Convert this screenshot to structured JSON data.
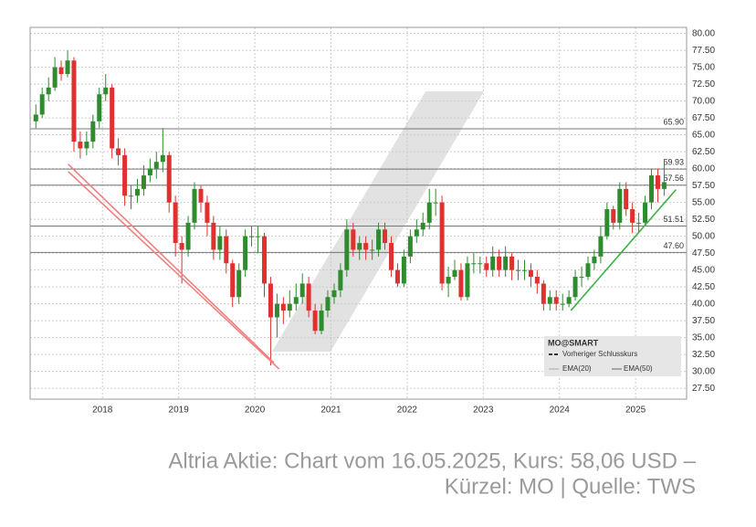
{
  "chart_data": {
    "type": "candlestick",
    "xlim": [
      2017.05,
      2025.67
    ],
    "xticks": [
      2018,
      2019,
      2020,
      2021,
      2022,
      2023,
      2024,
      2025
    ],
    "ylim": [
      25.9,
      80.9
    ],
    "yticks": [
      {
        "value": 27.5,
        "label": "27.50"
      },
      {
        "value": 30,
        "label": "30.00"
      },
      {
        "value": 32.5,
        "label": "32.50"
      },
      {
        "value": 35,
        "label": "35.00"
      },
      {
        "value": 37.5,
        "label": "37.50"
      },
      {
        "value": 40,
        "label": "40.00"
      },
      {
        "value": 42.5,
        "label": "42.50"
      },
      {
        "value": 45,
        "label": "45.00"
      },
      {
        "value": 47.5,
        "label": "47.50"
      },
      {
        "value": 50,
        "label": "50.00"
      },
      {
        "value": 52.5,
        "label": "52.50"
      },
      {
        "value": 55,
        "label": "55.00"
      },
      {
        "value": 57.5,
        "label": "57.50"
      },
      {
        "value": 60,
        "label": "60.00"
      },
      {
        "value": 62.5,
        "label": "62.50"
      },
      {
        "value": 65,
        "label": "65.00"
      },
      {
        "value": 67.5,
        "label": "67.50"
      },
      {
        "value": 70,
        "label": "70.00"
      },
      {
        "value": 72.5,
        "label": "72.50"
      },
      {
        "value": 75,
        "label": "75.00"
      },
      {
        "value": 77.5,
        "label": "77.50"
      },
      {
        "value": 80,
        "label": "80.00"
      }
    ],
    "grid": true,
    "up_color": "#2e8b2e",
    "down_color": "#e03030",
    "x": [
      2017.125,
      2017.208,
      2017.292,
      2017.375,
      2017.458,
      2017.542,
      2017.625,
      2017.708,
      2017.792,
      2017.875,
      2017.958,
      2018.042,
      2018.125,
      2018.208,
      2018.292,
      2018.375,
      2018.458,
      2018.542,
      2018.625,
      2018.708,
      2018.792,
      2018.875,
      2018.958,
      2019.042,
      2019.125,
      2019.208,
      2019.292,
      2019.375,
      2019.458,
      2019.542,
      2019.625,
      2019.708,
      2019.792,
      2019.875,
      2019.958,
      2020.042,
      2020.125,
      2020.208,
      2020.292,
      2020.375,
      2020.458,
      2020.542,
      2020.625,
      2020.708,
      2020.792,
      2020.875,
      2020.958,
      2021.042,
      2021.125,
      2021.208,
      2021.292,
      2021.375,
      2021.458,
      2021.542,
      2021.625,
      2021.708,
      2021.792,
      2021.875,
      2021.958,
      2022.042,
      2022.125,
      2022.208,
      2022.292,
      2022.375,
      2022.458,
      2022.542,
      2022.625,
      2022.708,
      2022.792,
      2022.875,
      2022.958,
      2023.042,
      2023.125,
      2023.208,
      2023.292,
      2023.375,
      2023.458,
      2023.542,
      2023.625,
      2023.708,
      2023.792,
      2023.875,
      2023.958,
      2024.042,
      2024.125,
      2024.208,
      2024.292,
      2024.375,
      2024.458,
      2024.542,
      2024.625,
      2024.708,
      2024.792,
      2024.875,
      2024.958,
      2025.042,
      2025.125,
      2025.208,
      2025.292,
      2025.375
    ],
    "open": [
      67,
      68,
      71,
      72,
      75,
      74,
      76,
      64,
      63,
      64,
      67,
      71,
      72,
      63,
      62,
      56,
      56,
      57,
      59,
      60,
      61,
      62,
      55,
      49,
      48,
      52,
      57,
      55,
      52,
      48,
      50,
      46,
      41,
      45,
      50,
      50,
      50,
      43,
      38,
      40,
      39,
      40,
      41,
      43,
      39,
      36,
      39,
      41,
      42,
      45,
      51,
      48,
      49,
      48,
      48,
      51,
      49,
      45,
      43,
      47,
      50,
      51,
      52,
      55,
      55,
      43,
      44,
      45,
      41,
      46,
      46,
      46,
      45,
      47,
      45,
      47,
      45,
      45,
      45,
      44,
      43,
      40,
      41,
      40,
      40,
      41,
      44,
      44,
      46,
      47,
      50,
      54,
      52,
      57,
      54,
      52,
      52,
      55,
      59,
      57
    ],
    "high": [
      69.5,
      72,
      73.5,
      76.5,
      76,
      77.5,
      76.5,
      65.5,
      65.5,
      68,
      72,
      74,
      72.5,
      64.5,
      63,
      57.5,
      58.5,
      60.5,
      61.5,
      62.5,
      66,
      62.5,
      56,
      50,
      53,
      58,
      57.5,
      56,
      53,
      51.5,
      51,
      46.5,
      46,
      51,
      51.5,
      51.5,
      50.5,
      44,
      41.5,
      41,
      42,
      43,
      44.5,
      44,
      40,
      40,
      42,
      43,
      46,
      52.5,
      52,
      50,
      50,
      49.5,
      52,
      52,
      50,
      46,
      48,
      51,
      52.5,
      53.5,
      57,
      57,
      56,
      45.5,
      46.5,
      46,
      47,
      47.5,
      47,
      47,
      48.5,
      48,
      48.5,
      47.5,
      46.5,
      46.5,
      46,
      45,
      43.5,
      42,
      42,
      41.5,
      42,
      45,
      45.5,
      47,
      48,
      51.5,
      55,
      54.5,
      58,
      58,
      55,
      53.5,
      56,
      60,
      60,
      61
    ],
    "low": [
      66,
      67.5,
      70,
      71.5,
      73,
      73.5,
      62.5,
      61.5,
      62,
      63,
      66,
      70,
      61.5,
      60.5,
      54.5,
      54,
      55,
      56,
      58,
      58.5,
      59.5,
      53.5,
      47,
      43,
      47,
      51,
      53.5,
      50,
      46.5,
      46.5,
      44.5,
      39.5,
      40,
      44,
      48.5,
      47.5,
      41,
      30.9,
      35,
      37,
      38,
      39,
      40,
      38,
      35.5,
      35.5,
      38,
      40,
      41,
      44,
      47,
      46.5,
      46.5,
      46.5,
      47,
      48,
      44,
      42.5,
      42.5,
      46,
      49,
      50,
      51,
      53,
      42,
      41,
      43.5,
      40.5,
      40.5,
      44.5,
      44.5,
      44,
      44,
      44,
      44,
      43.5,
      43.5,
      43.5,
      42.5,
      41.5,
      39,
      39,
      39,
      39,
      39.5,
      40.5,
      42.5,
      43.5,
      45,
      46,
      49.5,
      51,
      51,
      53,
      50.5,
      50.5,
      51.5,
      54,
      55,
      56
    ],
    "close": [
      68,
      71,
      72,
      75,
      74,
      76,
      64,
      63,
      64,
      67,
      71,
      72,
      63,
      62,
      56,
      56,
      57,
      59,
      60,
      61,
      62,
      55,
      49,
      48,
      52,
      57,
      55,
      52,
      48,
      50,
      46,
      41,
      45,
      50,
      50,
      50,
      43,
      38,
      40,
      39,
      40,
      41,
      43,
      39,
      36,
      39,
      41,
      42,
      45,
      51,
      48,
      49,
      48,
      48,
      51,
      49,
      45,
      43,
      47,
      50,
      51,
      52,
      55,
      55,
      43,
      44,
      45,
      41,
      46,
      46,
      46,
      45,
      47,
      45,
      47,
      45,
      45,
      45,
      44,
      43,
      40,
      41,
      40,
      40,
      41,
      44,
      44,
      46,
      47,
      50,
      54,
      52,
      57,
      54,
      52,
      52,
      55,
      59,
      57,
      58
    ],
    "levels": [
      {
        "value": 65.9,
        "label": "65.90"
      },
      {
        "value": 59.93,
        "label": "59.93"
      },
      {
        "value": 57.56,
        "label": "57.56"
      },
      {
        "value": 51.51,
        "label": "51.51"
      },
      {
        "value": 47.6,
        "label": "47.60"
      }
    ],
    "trendlines": [
      {
        "color": "#f08080",
        "x": [
          2017.55,
          2020.25
        ],
        "y": [
          60.65,
          31.3
        ]
      },
      {
        "color": "#f08080",
        "x": [
          2017.55,
          2020.32
        ],
        "y": [
          59.57,
          30.35
        ]
      },
      {
        "color": "#3cb043",
        "x": [
          2024.15,
          2025.53
        ],
        "y": [
          39.0,
          56.9
        ]
      }
    ],
    "legend": {
      "title": "MO@SMART",
      "items": [
        "Vorheriger Schlusskurs",
        "EMA(20)",
        "EMA(50)"
      ]
    }
  },
  "caption": [
    "Altria Aktie: Chart vom 16.05.2025, Kurs: 58,06 USD –",
    "Kürzel: MO | Quelle: TWS"
  ]
}
